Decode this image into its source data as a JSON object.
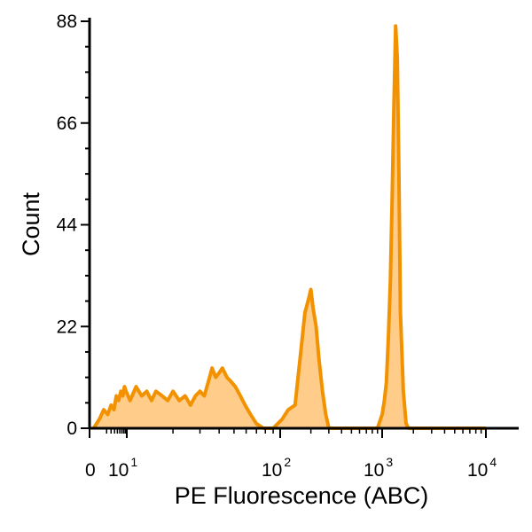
{
  "chart_data": {
    "type": "area",
    "title": "",
    "xlabel": "PE Fluorescence (ABC)",
    "ylabel": "Count",
    "x_scale": "biexponential",
    "xlim": [
      0,
      10000
    ],
    "ylim": [
      0,
      88
    ],
    "x_ticks": [
      {
        "value": 0,
        "label": "0",
        "exp": ""
      },
      {
        "value": 10,
        "label": "10",
        "exp": "1"
      },
      {
        "value": 100,
        "label": "10",
        "exp": "2"
      },
      {
        "value": 1000,
        "label": "10",
        "exp": "3"
      },
      {
        "value": 10000,
        "label": "10",
        "exp": "4"
      }
    ],
    "y_ticks": [
      0,
      22,
      44,
      66,
      88
    ],
    "grid": false,
    "legend": "none",
    "colors": {
      "line": "#F39200",
      "fill": "#FFCC8A"
    },
    "series": [
      {
        "x": [
          0.3,
          0.9,
          1.5,
          2.2,
          3,
          3.8,
          4.6,
          5.5,
          6.5,
          7.5,
          8.5,
          9.5,
          10.5,
          11.5,
          12.5,
          13.5,
          14.5,
          15.5,
          17,
          18.5,
          20,
          22,
          24,
          26,
          28,
          30,
          32,
          34,
          36,
          38,
          40,
          42,
          45,
          48,
          51,
          55,
          59,
          64,
          70,
          78,
          90,
          105,
          120,
          140,
          160,
          175,
          190,
          200,
          210,
          225,
          240,
          260,
          280,
          300,
          340,
          400,
          500,
          600,
          700,
          800,
          900,
          1000,
          1050,
          1100,
          1150,
          1200,
          1250,
          1300,
          1350,
          1400,
          1450,
          1500,
          1600,
          1700,
          1800,
          2000,
          3000,
          5000,
          8000,
          10000
        ],
        "y": [
          0,
          2,
          4,
          3,
          5,
          4,
          7,
          6,
          8,
          7,
          9,
          8,
          6,
          9,
          7,
          8,
          6,
          8,
          7,
          6,
          8,
          6,
          7,
          5,
          7,
          8,
          7,
          10,
          13,
          11,
          12,
          13,
          11,
          10,
          9,
          7,
          5,
          3,
          1,
          0,
          0,
          2,
          4,
          5,
          17,
          25,
          28,
          30,
          26,
          22,
          15,
          8,
          3,
          0,
          0,
          0,
          0,
          0,
          0,
          0,
          0,
          3,
          6,
          10,
          20,
          32,
          50,
          70,
          87,
          80,
          55,
          25,
          8,
          1,
          0,
          0,
          0,
          0,
          0,
          0
        ]
      }
    ]
  }
}
